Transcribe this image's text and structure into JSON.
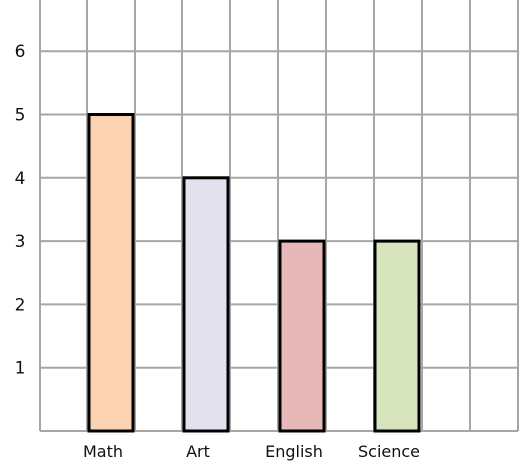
{
  "chart_data": {
    "type": "bar",
    "title": "",
    "xlabel": "",
    "ylabel": "",
    "categories": [
      "Math",
      "Art",
      "English",
      "Science"
    ],
    "values": [
      5,
      4,
      3,
      3
    ],
    "bar_colors": [
      "#fbd3b2",
      "#e4e1ee",
      "#e6b8b7",
      "#d8e4bc"
    ],
    "yticks": [
      "1",
      "2",
      "3",
      "4",
      "5",
      "6"
    ],
    "ylim": [
      0,
      6.6
    ],
    "grid": true,
    "grid_color": "#a6a6a6",
    "bar_outline_color": "#000000"
  }
}
